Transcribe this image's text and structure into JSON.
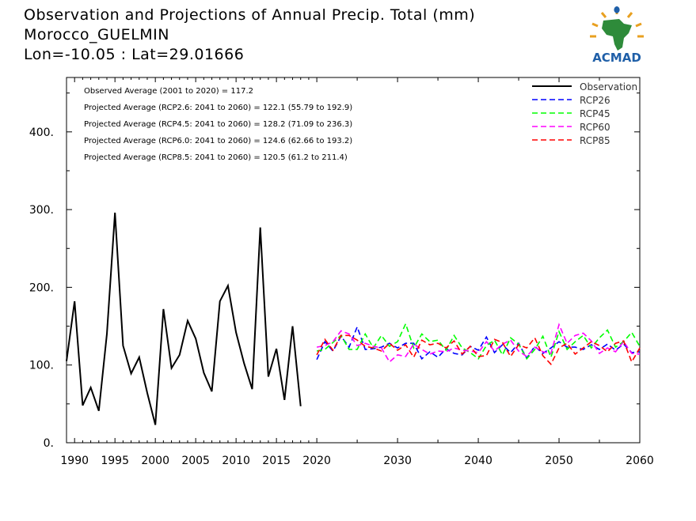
{
  "title_lines": [
    "Observation and Projections of Annual Precip. Total (mm)",
    "Morocco_GUELMIN",
    "Lon=-10.05 : Lat=29.01666"
  ],
  "logo": {
    "text": "ACMAD",
    "color": "#1f5fa8",
    "accent": "#e8a020"
  },
  "chart_data": {
    "type": "line",
    "title": "Observation and Projections of Annual Precip. Total (mm)",
    "xlabel": "",
    "ylabel": "",
    "xlim": [
      1989,
      2060
    ],
    "ylim": [
      0,
      470
    ],
    "x_ticks": [
      1990,
      1995,
      2000,
      2005,
      2010,
      2015,
      2020,
      2030,
      2040,
      2050,
      2060
    ],
    "y_ticks": [
      0,
      100,
      200,
      300,
      400
    ],
    "y_tick_labels": [
      "0.",
      "100.",
      "200.",
      "300.",
      "400."
    ],
    "grid": false,
    "legend": "top-right",
    "annotations": [
      "Observed Average (2001 to 2020) = 117.2",
      "Projected Average (RCP2.6: 2041 to 2060) = 122.1 (55.79 to 192.9)",
      "Projected Average (RCP4.5: 2041 to 2060) = 128.2 (71.09 to 236.3)",
      "Projected Average (RCP6.0: 2041 to 2060) = 124.6 (62.66 to 193.2)",
      "Projected Average (RCP8.5: 2041 to 2060) = 120.5 (61.2 to 211.4)"
    ],
    "series": [
      {
        "name": "Observation",
        "color": "#000000",
        "dash": "solid",
        "x": [
          1989,
          1990,
          1991,
          1992,
          1993,
          1994,
          1995,
          1996,
          1997,
          1998,
          1999,
          2000,
          2001,
          2002,
          2003,
          2004,
          2005,
          2006,
          2007,
          2008,
          2009,
          2010,
          2011,
          2012,
          2013,
          2014,
          2015,
          2016,
          2017,
          2018,
          2019,
          2020
        ],
        "y": [
          105,
          182,
          48,
          71,
          41,
          140,
          296,
          125,
          89,
          110,
          64,
          23,
          172,
          96,
          113,
          157,
          134,
          90,
          66,
          182,
          202,
          142,
          102,
          69,
          277,
          85,
          121,
          55,
          150,
          47,
          null,
          null
        ]
      },
      {
        "name": "RCP26",
        "color": "#0000ff",
        "dash": "dashed",
        "x": [
          2020,
          2021,
          2022,
          2023,
          2024,
          2025,
          2026,
          2027,
          2028,
          2029,
          2030,
          2031,
          2032,
          2033,
          2034,
          2035,
          2036,
          2037,
          2038,
          2039,
          2040,
          2041,
          2042,
          2043,
          2044,
          2045,
          2046,
          2047,
          2048,
          2049,
          2050,
          2051,
          2052,
          2053,
          2054,
          2055,
          2056,
          2057,
          2058,
          2059,
          2060
        ],
        "y": [
          107,
          130,
          118,
          137,
          123,
          149,
          120,
          121,
          123,
          128,
          122,
          128,
          128,
          108,
          117,
          110,
          121,
          115,
          113,
          124,
          119,
          136,
          116,
          126,
          116,
          128,
          109,
          124,
          115,
          122,
          130,
          123,
          123,
          120,
          126,
          120,
          127,
          119,
          127,
          116,
          117
        ]
      },
      {
        "name": "RCP45",
        "color": "#00ff00",
        "dash": "dashed",
        "x": [
          2020,
          2021,
          2022,
          2023,
          2024,
          2025,
          2026,
          2027,
          2028,
          2029,
          2030,
          2031,
          2032,
          2033,
          2034,
          2035,
          2036,
          2037,
          2038,
          2039,
          2040,
          2041,
          2042,
          2043,
          2044,
          2045,
          2046,
          2047,
          2048,
          2049,
          2050,
          2051,
          2052,
          2053,
          2054,
          2055,
          2056,
          2057,
          2058,
          2059,
          2060
        ],
        "y": [
          118,
          120,
          129,
          138,
          120,
          120,
          140,
          122,
          138,
          124,
          130,
          153,
          122,
          140,
          130,
          132,
          119,
          138,
          122,
          116,
          108,
          125,
          132,
          113,
          135,
          127,
          108,
          120,
          137,
          110,
          143,
          120,
          130,
          138,
          122,
          135,
          145,
          123,
          130,
          142,
          124
        ]
      },
      {
        "name": "RCP60",
        "color": "#ff00ff",
        "dash": "dashed",
        "x": [
          2020,
          2021,
          2022,
          2023,
          2024,
          2025,
          2026,
          2027,
          2028,
          2029,
          2030,
          2031,
          2032,
          2033,
          2034,
          2035,
          2036,
          2037,
          2038,
          2039,
          2040,
          2041,
          2042,
          2043,
          2044,
          2045,
          2046,
          2047,
          2048,
          2049,
          2050,
          2051,
          2052,
          2053,
          2054,
          2055,
          2056,
          2057,
          2058,
          2059,
          2060
        ],
        "y": [
          123,
          125,
          130,
          144,
          140,
          125,
          128,
          124,
          122,
          104,
          113,
          111,
          127,
          120,
          114,
          118,
          117,
          122,
          119,
          118,
          116,
          130,
          118,
          127,
          132,
          118,
          111,
          123,
          117,
          115,
          152,
          128,
          138,
          141,
          131,
          115,
          122,
          117,
          130,
          115,
          114
        ]
      },
      {
        "name": "RCP85",
        "color": "#ff0000",
        "dash": "dashed",
        "x": [
          2020,
          2021,
          2022,
          2023,
          2024,
          2025,
          2026,
          2027,
          2028,
          2029,
          2030,
          2031,
          2032,
          2033,
          2034,
          2035,
          2036,
          2037,
          2038,
          2039,
          2040,
          2041,
          2042,
          2043,
          2044,
          2045,
          2046,
          2047,
          2048,
          2049,
          2050,
          2051,
          2052,
          2053,
          2054,
          2055,
          2056,
          2057,
          2058,
          2059,
          2060
        ],
        "y": [
          113,
          133,
          119,
          138,
          138,
          132,
          124,
          122,
          118,
          128,
          119,
          126,
          110,
          132,
          126,
          128,
          122,
          131,
          114,
          124,
          111,
          112,
          133,
          129,
          111,
          126,
          122,
          135,
          112,
          101,
          122,
          128,
          114,
          122,
          130,
          125,
          117,
          128,
          131,
          104,
          122
        ]
      }
    ]
  }
}
